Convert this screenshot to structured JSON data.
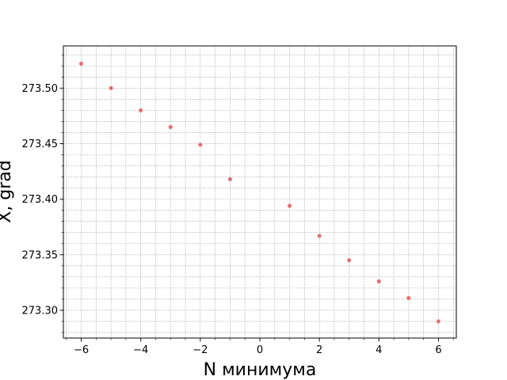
{
  "chart_data": {
    "type": "scatter",
    "xlabel": "N минимума",
    "ylabel": "X, grad",
    "xlim": [
      -6.6,
      6.6
    ],
    "ylim": [
      273.275,
      273.538
    ],
    "x_ticks": [
      -6,
      -4,
      -2,
      0,
      2,
      4,
      6
    ],
    "x_tick_labels": [
      "−6",
      "−4",
      "−2",
      "0",
      "2",
      "4",
      "6"
    ],
    "x_minor_step": 0.5,
    "y_ticks": [
      273.3,
      273.35,
      273.4,
      273.45,
      273.5
    ],
    "y_tick_labels": [
      "273.30",
      "273.35",
      "273.40",
      "273.45",
      "273.50"
    ],
    "y_minor_step": 0.01,
    "grid": true,
    "marker_color": "#e06666",
    "points": [
      {
        "x": -6,
        "y": 273.522
      },
      {
        "x": -5,
        "y": 273.5
      },
      {
        "x": -4,
        "y": 273.48
      },
      {
        "x": -3,
        "y": 273.465
      },
      {
        "x": -2,
        "y": 273.449
      },
      {
        "x": -1,
        "y": 273.418
      },
      {
        "x": 1,
        "y": 273.394
      },
      {
        "x": 2,
        "y": 273.367
      },
      {
        "x": 3,
        "y": 273.345
      },
      {
        "x": 4,
        "y": 273.326
      },
      {
        "x": 5,
        "y": 273.311
      },
      {
        "x": 6,
        "y": 273.29
      }
    ]
  }
}
